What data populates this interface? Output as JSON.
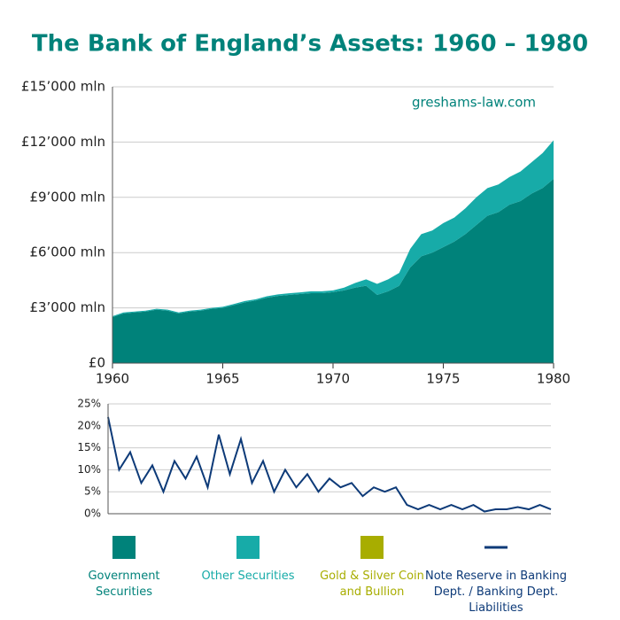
{
  "chart_data": [
    {
      "type": "area",
      "title": "The Bank of England’s Assets: 1960 – 1980",
      "source": "greshams-law.com",
      "x": [
        1960,
        1960.5,
        1961,
        1961.5,
        1962,
        1962.5,
        1963,
        1963.5,
        1964,
        1964.5,
        1965,
        1965.5,
        1966,
        1966.5,
        1967,
        1967.5,
        1968,
        1968.5,
        1969,
        1969.5,
        1970,
        1970.5,
        1971,
        1971.5,
        1972,
        1972.5,
        1973,
        1973.5,
        1974,
        1974.5,
        1975,
        1975.5,
        1976,
        1976.5,
        1977,
        1977.5,
        1978,
        1978.5,
        1979,
        1979.5,
        1980
      ],
      "series": [
        {
          "name": "Government Securities",
          "color": "#00827a",
          "values": [
            2500,
            2700,
            2750,
            2800,
            2900,
            2850,
            2700,
            2800,
            2850,
            2950,
            3000,
            3150,
            3300,
            3400,
            3550,
            3650,
            3700,
            3750,
            3800,
            3800,
            3850,
            3950,
            4100,
            4200,
            3700,
            3900,
            4200,
            5200,
            5800,
            6000,
            6300,
            6600,
            7000,
            7500,
            8000,
            8200,
            8600,
            8800,
            9200,
            9500,
            10000
          ]
        },
        {
          "name": "Other Securities",
          "color": "#17aba8",
          "values": [
            50,
            50,
            50,
            50,
            50,
            50,
            50,
            50,
            50,
            50,
            60,
            60,
            70,
            70,
            80,
            80,
            90,
            90,
            100,
            100,
            100,
            150,
            250,
            350,
            600,
            650,
            700,
            1000,
            1200,
            1200,
            1300,
            1300,
            1400,
            1500,
            1500,
            1500,
            1500,
            1600,
            1700,
            1900,
            2100
          ]
        },
        {
          "name": "Gold & Silver Coin and Bullion",
          "color": "#a8ad00",
          "values": [
            0,
            0,
            0,
            0,
            0,
            0,
            0,
            0,
            0,
            0,
            0,
            0,
            0,
            0,
            0,
            0,
            0,
            0,
            0,
            0,
            0,
            0,
            0,
            0,
            0,
            0,
            0,
            0,
            0,
            0,
            0,
            0,
            0,
            0,
            0,
            0,
            0,
            0,
            0,
            0,
            0
          ]
        }
      ],
      "xlim": [
        1960,
        1980
      ],
      "xticks": [
        1960,
        1965,
        1970,
        1975,
        1980
      ],
      "ylim": [
        0,
        15000
      ],
      "yticks": [
        {
          "value": 0,
          "label": "£0"
        },
        {
          "value": 3000,
          "label": "£3’000 mln"
        },
        {
          "value": 6000,
          "label": "£6’000 mln"
        },
        {
          "value": 9000,
          "label": "£9’000 mln"
        },
        {
          "value": 12000,
          "label": "£12’000 mln"
        },
        {
          "value": 15000,
          "label": "£15’000 mln"
        }
      ],
      "grid": true
    },
    {
      "type": "line",
      "x": [
        1960,
        1960.5,
        1961,
        1961.5,
        1962,
        1962.5,
        1963,
        1963.5,
        1964,
        1964.5,
        1965,
        1965.5,
        1966,
        1966.5,
        1967,
        1967.5,
        1968,
        1968.5,
        1969,
        1969.5,
        1970,
        1970.5,
        1971,
        1971.5,
        1972,
        1972.5,
        1973,
        1973.5,
        1974,
        1974.5,
        1975,
        1975.5,
        1976,
        1976.5,
        1977,
        1977.5,
        1978,
        1978.5,
        1979,
        1979.5,
        1980
      ],
      "series": [
        {
          "name": "Note Reserve in Banking Dept. / Banking Dept. Liabilities",
          "color": "#0d3a78",
          "values": [
            22,
            10,
            14,
            7,
            11,
            5,
            12,
            8,
            13,
            6,
            18,
            9,
            17,
            7,
            12,
            5,
            10,
            6,
            9,
            5,
            8,
            6,
            7,
            4,
            6,
            5,
            6,
            2,
            1,
            2,
            1,
            2,
            1,
            2,
            0.5,
            1,
            1,
            1.5,
            1,
            2,
            1
          ]
        }
      ],
      "xlim": [
        1960,
        1980
      ],
      "ylim": [
        0,
        25
      ],
      "yticks": [
        {
          "value": 0,
          "label": "0%"
        },
        {
          "value": 5,
          "label": "5%"
        },
        {
          "value": 10,
          "label": "10%"
        },
        {
          "value": 15,
          "label": "15%"
        },
        {
          "value": 20,
          "label": "20%"
        },
        {
          "value": 25,
          "label": "25%"
        }
      ],
      "grid": true
    }
  ]
}
